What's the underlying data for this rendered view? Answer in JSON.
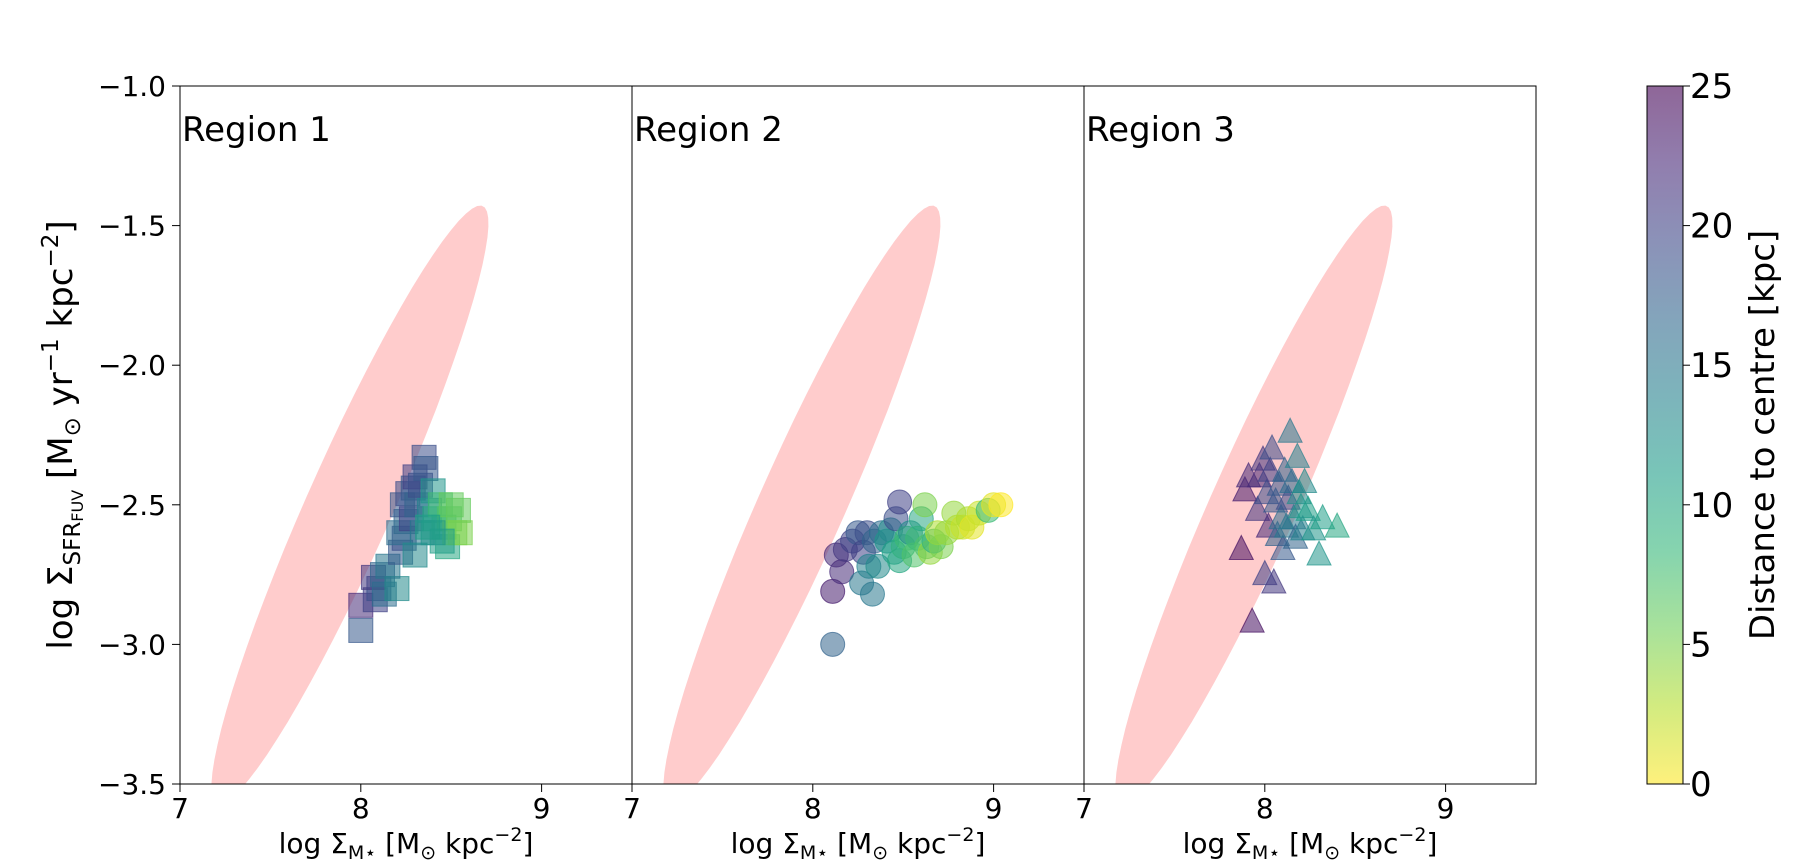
{
  "chart_data": {
    "type": "scatter",
    "figure": "log Sigma_SFR_FUV vs log Sigma_M* in three regions, coloured by distance to centre",
    "ylabel": {
      "pre": "log Σ",
      "sub": "SFR",
      "subsub": "FUV",
      "post": " [M",
      "sun": "⊙",
      "unit": " yr",
      "exp1": "−1",
      "unit2": " kpc",
      "exp2": "−2",
      "close": "]"
    },
    "xlabel": {
      "pre": "log Σ",
      "sub": "M",
      "star": "⋆",
      "post": " [M",
      "sun": "⊙",
      "unit": " kpc",
      "exp": "−2",
      "close": "]"
    },
    "xlim": [
      7,
      9.5
    ],
    "ylim": [
      -3.5,
      -1.0
    ],
    "xticks": [
      7,
      8,
      9
    ],
    "xtick_labels": [
      "7",
      "8",
      "9"
    ],
    "yticks": [
      -1.0,
      -1.5,
      -2.0,
      -2.5,
      -3.0,
      -3.5
    ],
    "ytick_labels": [
      "−1.0",
      "−1.5",
      "−2.0",
      "−2.5",
      "−3.0",
      "−3.5"
    ],
    "reference_ellipse": {
      "color": "#ffcccc",
      "center": [
        7.94,
        -2.5
      ],
      "semi_axis_major": 1.3,
      "semi_axis_minor": 0.214,
      "angle_deg": 55
    },
    "colorbar": {
      "label": "Distance to centre [kpc]",
      "ticks": [
        0,
        5,
        10,
        15,
        20,
        25
      ],
      "tick_labels": [
        "0",
        "5",
        "10",
        "15",
        "20",
        "25"
      ],
      "range": [
        0,
        25
      ],
      "colormap": "viridis_r",
      "stops": [
        "#fde725",
        "#b5de2b",
        "#6ece58",
        "#35b779",
        "#1f9e89",
        "#26828e",
        "#31688e",
        "#3e4989",
        "#482878",
        "#440154"
      ]
    },
    "panels": [
      {
        "name": "Region 1",
        "marker": "square",
        "points": [
          [
            8.0,
            -2.86,
            22
          ],
          [
            8.0,
            -2.95,
            18
          ],
          [
            8.08,
            -2.84,
            20
          ],
          [
            8.1,
            -2.8,
            19
          ],
          [
            8.07,
            -2.76,
            21
          ],
          [
            8.12,
            -2.75,
            17
          ],
          [
            8.13,
            -2.82,
            16
          ],
          [
            8.2,
            -2.8,
            13
          ],
          [
            8.15,
            -2.72,
            15
          ],
          [
            8.22,
            -2.67,
            18
          ],
          [
            8.24,
            -2.62,
            19
          ],
          [
            8.25,
            -2.56,
            17
          ],
          [
            8.21,
            -2.6,
            16
          ],
          [
            8.23,
            -2.5,
            18
          ],
          [
            8.26,
            -2.46,
            19
          ],
          [
            8.28,
            -2.55,
            20
          ],
          [
            8.29,
            -2.44,
            18
          ],
          [
            8.3,
            -2.4,
            20
          ],
          [
            8.31,
            -2.5,
            17
          ],
          [
            8.33,
            -2.43,
            19
          ],
          [
            8.35,
            -2.33,
            19
          ],
          [
            8.36,
            -2.37,
            18
          ],
          [
            8.34,
            -2.6,
            15
          ],
          [
            8.3,
            -2.68,
            13
          ],
          [
            8.38,
            -2.52,
            14
          ],
          [
            8.4,
            -2.45,
            12
          ],
          [
            8.41,
            -2.55,
            10
          ],
          [
            8.44,
            -2.5,
            8
          ],
          [
            8.46,
            -2.58,
            9
          ],
          [
            8.48,
            -2.65,
            10
          ],
          [
            8.49,
            -2.55,
            7
          ],
          [
            8.5,
            -2.5,
            6
          ],
          [
            8.52,
            -2.6,
            5
          ],
          [
            8.54,
            -2.52,
            6
          ],
          [
            8.55,
            -2.6,
            5
          ],
          [
            8.45,
            -2.63,
            11
          ],
          [
            8.4,
            -2.6,
            12
          ],
          [
            8.37,
            -2.58,
            11
          ]
        ]
      },
      {
        "name": "Region 2",
        "marker": "circle",
        "points": [
          [
            8.11,
            -3.0,
            17
          ],
          [
            8.11,
            -2.81,
            23
          ],
          [
            8.13,
            -2.68,
            22
          ],
          [
            8.16,
            -2.74,
            22
          ],
          [
            8.18,
            -2.66,
            21
          ],
          [
            8.22,
            -2.63,
            20
          ],
          [
            8.25,
            -2.6,
            18
          ],
          [
            8.28,
            -2.67,
            20
          ],
          [
            8.27,
            -2.78,
            15
          ],
          [
            8.31,
            -2.72,
            14
          ],
          [
            8.33,
            -2.82,
            15
          ],
          [
            8.36,
            -2.72,
            13
          ],
          [
            8.3,
            -2.6,
            19
          ],
          [
            8.34,
            -2.63,
            17
          ],
          [
            8.38,
            -2.6,
            16
          ],
          [
            8.41,
            -2.63,
            12
          ],
          [
            8.43,
            -2.59,
            13
          ],
          [
            8.46,
            -2.55,
            19
          ],
          [
            8.48,
            -2.49,
            20
          ],
          [
            8.45,
            -2.67,
            11
          ],
          [
            8.48,
            -2.7,
            10
          ],
          [
            8.5,
            -2.65,
            9
          ],
          [
            8.52,
            -2.62,
            8
          ],
          [
            8.54,
            -2.6,
            13
          ],
          [
            8.56,
            -2.68,
            7
          ],
          [
            8.58,
            -2.62,
            8
          ],
          [
            8.6,
            -2.55,
            10
          ],
          [
            8.62,
            -2.5,
            5
          ],
          [
            8.63,
            -2.65,
            7
          ],
          [
            8.65,
            -2.67,
            4
          ],
          [
            8.67,
            -2.63,
            9
          ],
          [
            8.69,
            -2.6,
            3
          ],
          [
            8.71,
            -2.65,
            5
          ],
          [
            8.74,
            -2.6,
            4
          ],
          [
            8.78,
            -2.53,
            4
          ],
          [
            8.8,
            -2.58,
            3
          ],
          [
            8.83,
            -2.58,
            2
          ],
          [
            8.86,
            -2.55,
            3
          ],
          [
            8.88,
            -2.58,
            1
          ],
          [
            8.92,
            -2.53,
            2
          ],
          [
            8.97,
            -2.52,
            8
          ],
          [
            9.0,
            -2.5,
            1
          ],
          [
            9.04,
            -2.5,
            0
          ]
        ]
      },
      {
        "name": "Region 3",
        "marker": "triangle",
        "points": [
          [
            7.87,
            -2.66,
            24
          ],
          [
            7.89,
            -2.45,
            23
          ],
          [
            7.91,
            -2.4,
            22
          ],
          [
            7.93,
            -2.92,
            24
          ],
          [
            7.96,
            -2.52,
            21
          ],
          [
            7.97,
            -2.4,
            22
          ],
          [
            7.99,
            -2.34,
            21
          ],
          [
            8.0,
            -2.75,
            20
          ],
          [
            8.01,
            -2.46,
            19
          ],
          [
            8.02,
            -2.58,
            22
          ],
          [
            8.03,
            -2.38,
            20
          ],
          [
            8.04,
            -2.3,
            19
          ],
          [
            8.05,
            -2.78,
            21
          ],
          [
            8.06,
            -2.49,
            18
          ],
          [
            8.07,
            -2.61,
            17
          ],
          [
            8.08,
            -2.43,
            18
          ],
          [
            8.09,
            -2.55,
            16
          ],
          [
            8.1,
            -2.66,
            18
          ],
          [
            8.11,
            -2.38,
            17
          ],
          [
            8.12,
            -2.58,
            15
          ],
          [
            8.13,
            -2.48,
            19
          ],
          [
            8.14,
            -2.24,
            15
          ],
          [
            8.15,
            -2.42,
            16
          ],
          [
            8.16,
            -2.55,
            15
          ],
          [
            8.17,
            -2.62,
            17
          ],
          [
            8.18,
            -2.33,
            14
          ],
          [
            8.19,
            -2.46,
            13
          ],
          [
            8.2,
            -2.51,
            12
          ],
          [
            8.21,
            -2.59,
            14
          ],
          [
            8.22,
            -2.42,
            13
          ],
          [
            8.24,
            -2.52,
            11
          ],
          [
            8.27,
            -2.59,
            12
          ],
          [
            8.3,
            -2.68,
            12
          ],
          [
            8.32,
            -2.55,
            11
          ],
          [
            8.4,
            -2.58,
            10
          ]
        ]
      }
    ]
  }
}
